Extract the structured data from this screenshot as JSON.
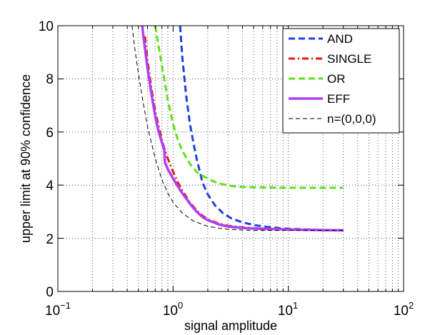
{
  "chart_data": {
    "type": "line",
    "title": "",
    "xlabel": "signal amplitude",
    "ylabel": "upper limit at 90% confidence",
    "xscale": "log",
    "xlim": [
      0.1,
      100
    ],
    "ylim": [
      0,
      10
    ],
    "grid": true,
    "legend_position": "top-right",
    "x_ticks": [
      {
        "base": "10",
        "exp": "−1",
        "value": 0.1
      },
      {
        "base": "10",
        "exp": "0",
        "value": 1
      },
      {
        "base": "10",
        "exp": "1",
        "value": 10
      },
      {
        "base": "10",
        "exp": "2",
        "value": 100
      }
    ],
    "y_ticks": [
      "0",
      "2",
      "4",
      "6",
      "8",
      "10"
    ],
    "y_tick_values": [
      0,
      2,
      4,
      6,
      8,
      10
    ],
    "series": [
      {
        "name": "AND",
        "color": "#1f3fe0",
        "style": "dashed",
        "width": 3,
        "x": [
          1.15,
          1.2,
          1.3,
          1.4,
          1.5,
          1.6,
          1.8,
          2.0,
          2.3,
          2.7,
          3.2,
          4.0,
          5.0,
          6.5,
          8.5,
          11,
          15,
          20,
          25,
          30
        ],
        "y": [
          10.0,
          8.85,
          7.35,
          6.3,
          5.6,
          5.0,
          4.1,
          3.65,
          3.25,
          2.95,
          2.75,
          2.6,
          2.5,
          2.43,
          2.38,
          2.35,
          2.33,
          2.31,
          2.31,
          2.3
        ]
      },
      {
        "name": "SINGLE",
        "color": "#e01a1a",
        "style": "dashdot",
        "width": 3,
        "x": [
          0.57,
          0.6,
          0.65,
          0.7,
          0.75,
          0.8,
          0.85,
          0.9,
          1.0,
          1.1,
          1.2,
          1.4,
          1.6,
          1.8,
          2.0,
          2.5,
          3.0,
          4.0,
          5.0,
          7.0,
          10,
          15,
          20,
          30
        ],
        "y": [
          9.6,
          8.7,
          7.6,
          6.8,
          6.2,
          5.7,
          5.3,
          5.0,
          4.5,
          4.1,
          3.8,
          3.35,
          3.05,
          2.85,
          2.72,
          2.55,
          2.47,
          2.41,
          2.38,
          2.36,
          2.33,
          2.32,
          2.31,
          2.3
        ]
      },
      {
        "name": "OR",
        "color": "#5ee01a",
        "style": "dashed",
        "width": 3,
        "x": [
          0.7,
          0.75,
          0.8,
          0.9,
          1.0,
          1.1,
          1.2,
          1.4,
          1.6,
          1.8,
          2.0,
          2.3,
          2.7,
          3.2,
          4.0,
          5.0,
          7.0,
          10,
          15,
          20,
          30
        ],
        "y": [
          10.0,
          9.2,
          8.5,
          7.2,
          6.3,
          5.7,
          5.3,
          4.8,
          4.5,
          4.35,
          4.25,
          4.12,
          4.03,
          3.97,
          3.93,
          3.92,
          3.91,
          3.9,
          3.9,
          3.9,
          3.9
        ]
      },
      {
        "name": "EFF",
        "color": "#b040f0",
        "style": "solid",
        "width": 3.5,
        "x": [
          0.54,
          0.56,
          0.6,
          0.65,
          0.7,
          0.75,
          0.8,
          0.84,
          0.85,
          0.9,
          1.0,
          1.1,
          1.2,
          1.4,
          1.6,
          1.8,
          2.0,
          2.5,
          3.0,
          4.0,
          5.0,
          7.0,
          10,
          15,
          20,
          30
        ],
        "y": [
          10.0,
          9.4,
          8.4,
          7.4,
          6.6,
          6.0,
          5.6,
          5.3,
          4.85,
          4.6,
          4.25,
          3.95,
          3.7,
          3.3,
          3.0,
          2.8,
          2.68,
          2.52,
          2.44,
          2.39,
          2.37,
          2.35,
          2.33,
          2.32,
          2.31,
          2.3
        ]
      },
      {
        "name": "n=(0,0,0)",
        "color": "#000000",
        "style": "thin-dashed",
        "width": 1,
        "x": [
          0.44,
          0.47,
          0.5,
          0.55,
          0.6,
          0.7,
          0.8,
          0.9,
          1.0,
          1.2,
          1.5,
          2.0,
          2.5,
          3.0,
          4.0,
          5.0,
          7.0,
          10,
          15,
          20,
          30
        ],
        "y": [
          10.0,
          9.0,
          8.2,
          7.1,
          6.2,
          5.0,
          4.2,
          3.7,
          3.35,
          2.95,
          2.65,
          2.45,
          2.38,
          2.34,
          2.31,
          2.3,
          2.3,
          2.3,
          2.3,
          2.3,
          2.3
        ]
      }
    ]
  }
}
